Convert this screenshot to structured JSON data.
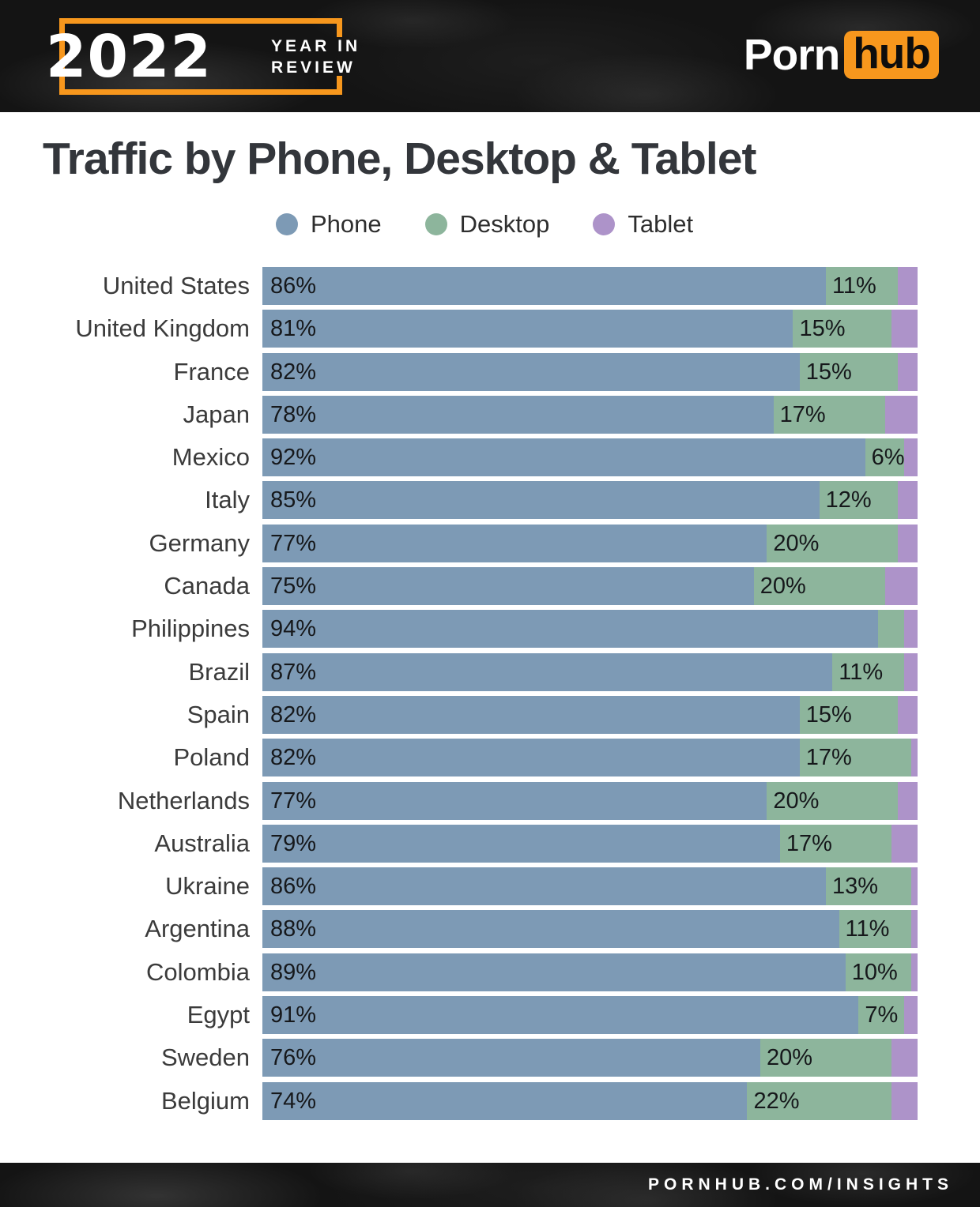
{
  "header": {
    "badge_year": "2022",
    "badge_line1": "YEAR IN",
    "badge_line2": "REVIEW",
    "brand_white": "Porn",
    "brand_orange": "hub",
    "accent_orange": "#f7971d"
  },
  "main": {
    "title": "Traffic by Phone, Desktop & Tablet"
  },
  "legend": {
    "items": [
      {
        "label": "Phone",
        "color": "#7d9ab5"
      },
      {
        "label": "Desktop",
        "color": "#8db59c"
      },
      {
        "label": "Tablet",
        "color": "#ad93c9"
      }
    ]
  },
  "chart_data": {
    "type": "bar",
    "orientation": "horizontal_stacked",
    "unit": "percent",
    "xlim": [
      0,
      100
    ],
    "grid": false,
    "legend_position": "top",
    "title": "Traffic by Phone, Desktop & Tablet",
    "categories": [
      "United States",
      "United Kingdom",
      "France",
      "Japan",
      "Mexico",
      "Italy",
      "Germany",
      "Canada",
      "Philippines",
      "Brazil",
      "Spain",
      "Poland",
      "Netherlands",
      "Australia",
      "Ukraine",
      "Argentina",
      "Colombia",
      "Egypt",
      "Sweden",
      "Belgium"
    ],
    "series": [
      {
        "name": "Phone",
        "color": "#7d9ab5",
        "values": [
          86,
          81,
          82,
          78,
          92,
          85,
          77,
          75,
          94,
          87,
          82,
          82,
          77,
          79,
          86,
          88,
          89,
          91,
          76,
          74
        ]
      },
      {
        "name": "Desktop",
        "color": "#8db59c",
        "values": [
          11,
          15,
          15,
          17,
          6,
          12,
          20,
          20,
          4,
          11,
          15,
          17,
          20,
          17,
          13,
          11,
          10,
          7,
          20,
          22
        ]
      },
      {
        "name": "Tablet",
        "color": "#ad93c9",
        "values": [
          3,
          4,
          3,
          5,
          2,
          3,
          3,
          5,
          2,
          2,
          3,
          1,
          3,
          4,
          1,
          1,
          1,
          2,
          4,
          4
        ]
      }
    ],
    "bar_labels": {
      "phone": [
        "86%",
        "81%",
        "82%",
        "78%",
        "92%",
        "85%",
        "77%",
        "75%",
        "94%",
        "87%",
        "82%",
        "82%",
        "77%",
        "79%",
        "86%",
        "88%",
        "89%",
        "91%",
        "76%",
        "74%"
      ],
      "desktop": [
        "11%",
        "15%",
        "15%",
        "17%",
        "6%",
        "12%",
        "20%",
        "20%",
        "",
        "11%",
        "15%",
        "17%",
        "20%",
        "17%",
        "13%",
        "11%",
        "10%",
        "7%",
        "20%",
        "22%"
      ]
    }
  },
  "footer": {
    "url_text": "PORNHUB.COM/INSIGHTS"
  }
}
